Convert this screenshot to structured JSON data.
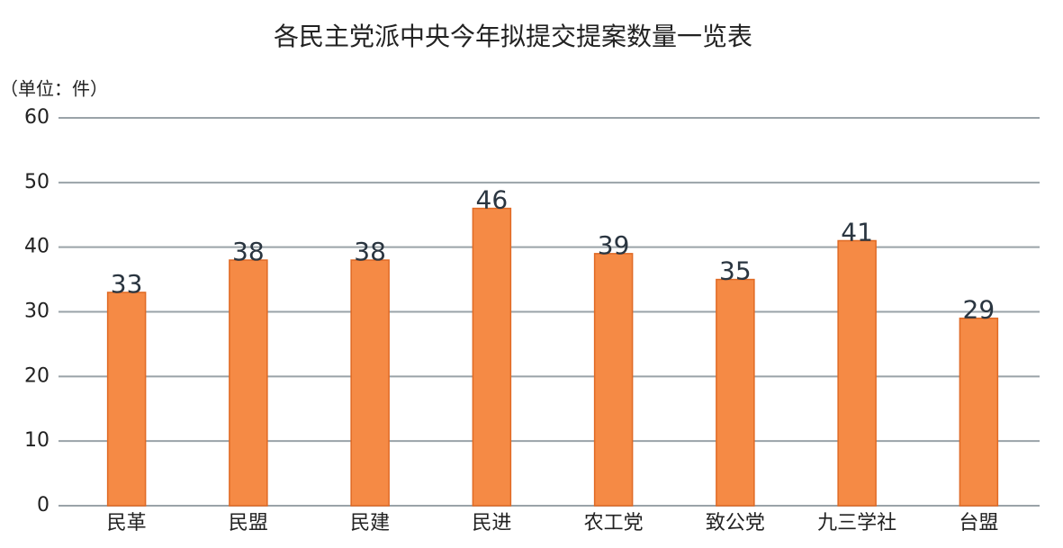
{
  "chart_data": {
    "type": "bar",
    "title": "各民主党派中央今年拟提交提案数量一览表",
    "y_axis_label": "（单位：件）",
    "categories": [
      "民革",
      "民盟",
      "民建",
      "民进",
      "农工党",
      "致公党",
      "九三学社",
      "台盟"
    ],
    "values": [
      33,
      38,
      38,
      46,
      39,
      35,
      41,
      29
    ],
    "color": "#f58a45",
    "ylim": [
      0,
      60
    ],
    "yticks": [
      0,
      10,
      20,
      30,
      40,
      50,
      60
    ],
    "grid": true
  }
}
